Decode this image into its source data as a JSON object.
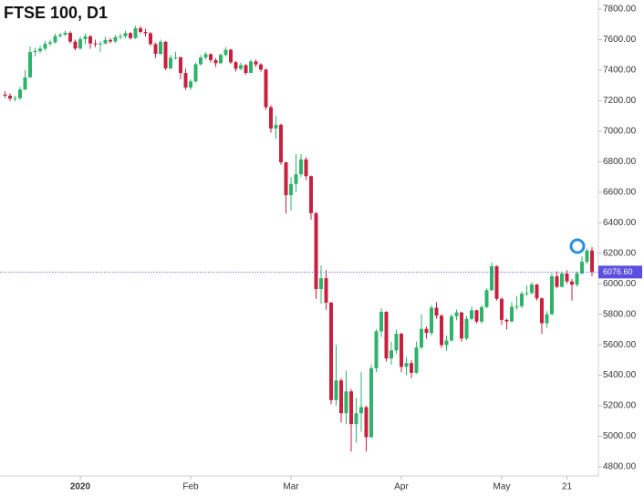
{
  "chart_data": {
    "type": "candlestick",
    "title": "FTSE 100, D1",
    "categories": [
      null,
      null,
      null,
      null,
      null,
      null,
      null,
      null,
      null,
      null,
      null,
      null,
      null,
      null,
      null,
      "2020",
      null,
      null,
      null,
      null,
      null,
      null,
      null,
      null,
      null,
      null,
      null,
      null,
      null,
      null,
      null,
      null,
      null,
      null,
      null,
      null,
      null,
      "Feb",
      null,
      null,
      null,
      null,
      null,
      null,
      null,
      null,
      null,
      null,
      null,
      null,
      null,
      null,
      null,
      null,
      null,
      null,
      null,
      "Mar",
      null,
      null,
      null,
      null,
      null,
      null,
      null,
      null,
      null,
      null,
      null,
      null,
      null,
      null,
      null,
      null,
      null,
      null,
      null,
      null,
      null,
      "Apr",
      null,
      null,
      null,
      null,
      null,
      null,
      null,
      null,
      null,
      null,
      null,
      null,
      null,
      null,
      null,
      null,
      null,
      null,
      null,
      "May",
      null,
      null,
      null,
      null,
      null,
      null,
      null,
      null,
      null,
      null,
      null,
      null,
      "21",
      null,
      null,
      null,
      null,
      null
    ],
    "open": [
      7240,
      7233,
      7214,
      7216,
      7273,
      7353,
      7519,
      7525,
      7541,
      7573,
      7582,
      7623,
      7632,
      7645,
      7587,
      7542,
      7604,
      7622,
      7575,
      7573,
      7575,
      7598,
      7588,
      7617,
      7622,
      7643,
      7610,
      7675,
      7651,
      7642,
      7571,
      7507,
      7586,
      7412,
      7481,
      7484,
      7381,
      7286,
      7326,
      7439,
      7483,
      7505,
      7466,
      7446,
      7500,
      7534,
      7452,
      7409,
      7433,
      7382,
      7457,
      7437,
      7404,
      7157,
      7018,
      7042,
      6796,
      6581,
      6654,
      6718,
      6815,
      6705,
      6463,
      5965,
      6036,
      5876,
      5237,
      5366,
      5151,
      5294,
      5080,
      5151,
      5191,
      4994,
      5446,
      5688,
      5816,
      5510,
      5563,
      5672,
      5455,
      5480,
      5416,
      5582,
      5704,
      5677,
      5843,
      5791,
      5598,
      5628,
      5787,
      5812,
      5641,
      5770,
      5826,
      5752,
      5847,
      5958,
      6115,
      5901,
      5763,
      5753,
      5849,
      5853,
      5935,
      5939,
      5995,
      5904,
      5741,
      5800,
      6049,
      5980,
      6067,
      6015,
      5994,
      6068,
      6144,
      6218
    ],
    "high": [
      7262,
      7248,
      7232,
      7290,
      7400,
      7555,
      7547,
      7560,
      7590,
      7600,
      7640,
      7645,
      7660,
      7655,
      7600,
      7620,
      7640,
      7630,
      7600,
      7590,
      7620,
      7610,
      7630,
      7640,
      7660,
      7650,
      7690,
      7690,
      7670,
      7650,
      7580,
      7600,
      7590,
      7500,
      7520,
      7490,
      7410,
      7340,
      7450,
      7500,
      7520,
      7510,
      7480,
      7510,
      7550,
      7540,
      7460,
      7450,
      7440,
      7470,
      7470,
      7445,
      7410,
      7170,
      7100,
      7050,
      6800,
      6700,
      6850,
      6850,
      6830,
      6710,
      6470,
      6120,
      6090,
      5880,
      5600,
      5380,
      5430,
      5310,
      5250,
      5420,
      5200,
      5470,
      5700,
      5840,
      5820,
      5620,
      5700,
      5680,
      5520,
      5500,
      5620,
      5800,
      5720,
      5860,
      5880,
      5800,
      5660,
      5800,
      5830,
      5815,
      5790,
      5850,
      5830,
      5860,
      5970,
      6140,
      6120,
      5910,
      5770,
      5880,
      5920,
      5950,
      5990,
      6010,
      6000,
      5910,
      5820,
      6070,
      6080,
      6080,
      6090,
      6030,
      6080,
      6180,
      6230,
      6240
    ],
    "low": [
      7218,
      7198,
      7196,
      7205,
      7270,
      7350,
      7490,
      7510,
      7530,
      7560,
      7575,
      7615,
      7625,
      7575,
      7530,
      7535,
      7570,
      7540,
      7550,
      7520,
      7570,
      7575,
      7580,
      7600,
      7610,
      7600,
      7605,
      7640,
      7620,
      7560,
      7480,
      7500,
      7400,
      7405,
      7470,
      7340,
      7270,
      7270,
      7320,
      7430,
      7470,
      7450,
      7420,
      7440,
      7490,
      7440,
      7390,
      7400,
      7370,
      7380,
      7420,
      7390,
      7140,
      6990,
      6950,
      6780,
      6460,
      6480,
      6600,
      6700,
      6680,
      6420,
      5900,
      5870,
      5830,
      5210,
      5200,
      5090,
      5080,
      4900,
      4960,
      5030,
      4900,
      4990,
      5420,
      5650,
      5490,
      5470,
      5540,
      5420,
      5400,
      5380,
      5410,
      5570,
      5640,
      5660,
      5770,
      5580,
      5560,
      5620,
      5760,
      5620,
      5630,
      5760,
      5740,
      5740,
      5840,
      5950,
      5890,
      5730,
      5700,
      5745,
      5830,
      5840,
      5920,
      5930,
      5890,
      5670,
      5710,
      5795,
      5970,
      5975,
      6000,
      5890,
      5980,
      6060,
      6130,
      6050
    ],
    "close": [
      7233,
      7214,
      7216,
      7273,
      7353,
      7519,
      7525,
      7541,
      7573,
      7582,
      7623,
      7632,
      7645,
      7587,
      7542,
      7604,
      7622,
      7575,
      7573,
      7575,
      7598,
      7588,
      7617,
      7622,
      7643,
      7610,
      7675,
      7651,
      7642,
      7571,
      7507,
      7586,
      7412,
      7481,
      7484,
      7381,
      7286,
      7326,
      7439,
      7483,
      7505,
      7466,
      7446,
      7500,
      7534,
      7452,
      7409,
      7433,
      7382,
      7457,
      7437,
      7404,
      7157,
      7018,
      7042,
      6796,
      6581,
      6654,
      6718,
      6815,
      6705,
      6463,
      5965,
      6036,
      5876,
      5237,
      5366,
      5151,
      5294,
      5080,
      5151,
      5191,
      4994,
      5446,
      5688,
      5816,
      5510,
      5563,
      5672,
      5455,
      5480,
      5416,
      5582,
      5704,
      5677,
      5843,
      5791,
      5598,
      5628,
      5787,
      5812,
      5641,
      5770,
      5826,
      5752,
      5847,
      5958,
      6115,
      5901,
      5763,
      5753,
      5849,
      5853,
      5935,
      5939,
      5995,
      5904,
      5741,
      5800,
      6049,
      5980,
      6067,
      6015,
      5994,
      6068,
      6144,
      6218,
      6076.6
    ],
    "up_color": "#2eb36b",
    "down_color": "#c9203f",
    "ylim": [
      4752,
      7860
    ],
    "yticks": [
      {
        "value": 4800,
        "label": "4800.00"
      },
      {
        "value": 5000,
        "label": "5000.00"
      },
      {
        "value": 5200,
        "label": "5200.00"
      },
      {
        "value": 5400,
        "label": "5400.00"
      },
      {
        "value": 5600,
        "label": "5600.00"
      },
      {
        "value": 5800,
        "label": "5800.00"
      },
      {
        "value": 6000,
        "label": "6000.00"
      },
      {
        "value": 6200,
        "label": "6200.00"
      },
      {
        "value": 6400,
        "label": "6400.00"
      },
      {
        "value": 6600,
        "label": "6600.00"
      },
      {
        "value": 6800,
        "label": "6800.00"
      },
      {
        "value": 7000,
        "label": "7000.00"
      },
      {
        "value": 7200,
        "label": "7200.00"
      },
      {
        "value": 7400,
        "label": "7400.00"
      },
      {
        "value": 7600,
        "label": "7600.00"
      },
      {
        "value": 7800,
        "label": "7800.00"
      }
    ],
    "price_line": {
      "value": 6076.6,
      "label": "6076.60",
      "color": "#5b4fe0"
    }
  }
}
